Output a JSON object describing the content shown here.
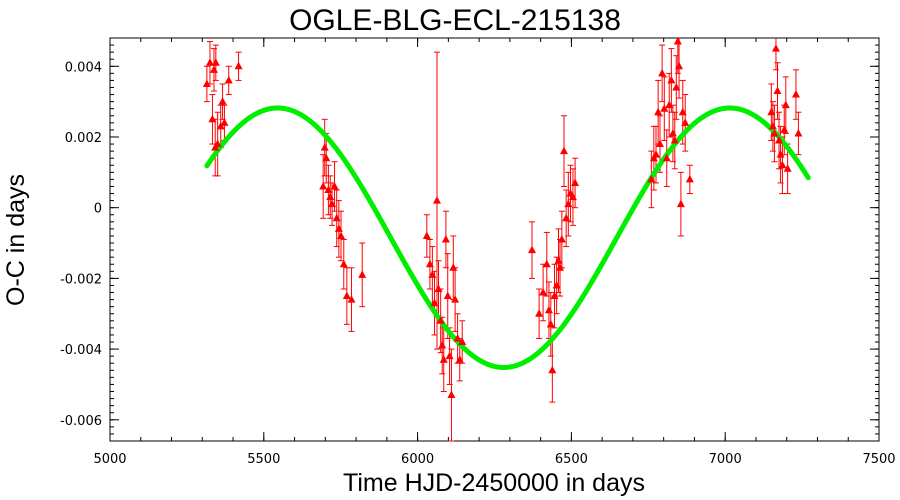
{
  "chart_data": {
    "type": "scatter",
    "title": "OGLE-BLG-ECL-215138",
    "xlabel": "Time HJD-2450000 in days",
    "ylabel": "O-C in days",
    "xlim": [
      5000,
      7500
    ],
    "ylim": [
      -0.0066,
      0.0048
    ],
    "x_ticks": [
      5000,
      5500,
      6000,
      6500,
      7000,
      7500
    ],
    "x_tick_labels": [
      "5000",
      "5500",
      "6000",
      "6500",
      "7000",
      "7500"
    ],
    "y_ticks": [
      0.004,
      0.002,
      0,
      -0.002,
      -0.004,
      -0.006
    ],
    "y_tick_labels": [
      "0.004",
      "0.002",
      "0",
      "-0.002",
      "-0.004",
      "-0.006"
    ],
    "colors": {
      "points": "#ff0000",
      "fit": "#00ee00",
      "frame": "#000000"
    },
    "series": [
      {
        "kind": "data-with-errorbars",
        "x": [
          5315,
          5325,
          5333,
          5342,
          5350,
          5338,
          5344,
          5360,
          5366,
          5372,
          5386,
          5418,
          5693,
          5698,
          5703,
          5710,
          5716,
          5722,
          5730,
          5737,
          5744,
          5751,
          5760,
          5770,
          5785,
          5820,
          6030,
          6040,
          6048,
          6055,
          6063,
          6068,
          6075,
          6080,
          6085,
          6092,
          6098,
          6104,
          6110,
          6116,
          6122,
          6130,
          6137,
          6145,
          6372,
          6395,
          6408,
          6420,
          6427,
          6433,
          6438,
          6445,
          6452,
          6458,
          6463,
          6469,
          6476,
          6483,
          6490,
          6497,
          6505,
          6512,
          6760,
          6768,
          6775,
          6782,
          6788,
          6795,
          6802,
          6810,
          6818,
          6825,
          6830,
          6836,
          6841,
          6846,
          6850,
          6856,
          6862,
          6870,
          6885,
          7150,
          7155,
          7160,
          7165,
          7170,
          7175,
          7180,
          7186,
          7192,
          7197,
          7203,
          7230,
          7238
        ],
        "y": [
          0.0035,
          0.0041,
          0.0025,
          0.0017,
          0.0018,
          0.0039,
          0.0041,
          0.0023,
          0.003,
          0.0024,
          0.0036,
          0.004,
          0.0006,
          0.0017,
          0.0014,
          0.0005,
          0.0003,
          0.0001,
          0.0006,
          -0.0003,
          -0.0006,
          -0.0008,
          -0.0016,
          -0.0025,
          -0.0026,
          -0.0019,
          -0.0008,
          -0.0016,
          -0.0019,
          -0.0027,
          0.0002,
          -0.0023,
          -0.0032,
          -0.0039,
          -0.0043,
          -0.0009,
          -0.0025,
          -0.0042,
          -0.0053,
          -0.0017,
          -0.0026,
          -0.0037,
          -0.0043,
          -0.0038,
          -0.0012,
          -0.003,
          -0.0024,
          -0.0016,
          -0.0029,
          -0.0033,
          -0.0046,
          -0.0025,
          -0.0022,
          -0.0015,
          -0.0017,
          -0.0009,
          0.0016,
          -0.0003,
          0.0001,
          0.0004,
          0.0003,
          0.0007,
          0.0008,
          0.0014,
          0.0015,
          0.0027,
          0.0018,
          0.0038,
          0.0028,
          0.0014,
          0.0029,
          0.0036,
          0.0021,
          0.0019,
          0.0034,
          0.0047,
          0.004,
          0.0001,
          0.0027,
          0.0024,
          0.0008,
          0.0027,
          0.0023,
          0.0021,
          0.0045,
          0.0033,
          0.0019,
          0.0015,
          0.0012,
          0.0022,
          0.0029,
          0.0011,
          0.0032,
          0.0021
        ],
        "yerr": [
          0.0005,
          0.0006,
          0.0007,
          0.0008,
          0.0009,
          0.0006,
          0.0005,
          0.0006,
          0.0005,
          0.0005,
          0.0004,
          0.0004,
          0.0009,
          0.0008,
          0.0007,
          0.0007,
          0.0006,
          0.0006,
          0.0007,
          0.0008,
          0.0008,
          0.0007,
          0.0007,
          0.0008,
          0.0009,
          0.0009,
          0.0006,
          0.0007,
          0.0008,
          0.0009,
          0.0042,
          0.0008,
          0.0009,
          0.0008,
          0.0009,
          0.0008,
          0.0012,
          0.0008,
          0.0013,
          0.0009,
          0.0009,
          0.0007,
          0.0006,
          0.0006,
          0.0008,
          0.0007,
          0.0008,
          0.0009,
          0.0008,
          0.0009,
          0.0009,
          0.0009,
          0.0008,
          0.0009,
          0.0008,
          0.0008,
          0.001,
          0.0008,
          0.0009,
          0.0008,
          0.0008,
          0.0007,
          0.0008,
          0.0009,
          0.0008,
          0.0009,
          0.0008,
          0.0008,
          0.0009,
          0.0008,
          0.0009,
          0.0009,
          0.0008,
          0.0008,
          0.0009,
          0.0009,
          0.0009,
          0.0009,
          0.0009,
          0.0008,
          0.0004,
          0.0008,
          0.0007,
          0.0008,
          0.0006,
          0.0008,
          0.0008,
          0.0008,
          0.0008,
          0.0007,
          0.0008,
          0.0007,
          0.0007,
          0.0006
        ]
      },
      {
        "kind": "fit-curve",
        "model": "sinusoid",
        "offset": -0.00085,
        "amplitude": 0.00367,
        "period_days": 1470,
        "minimum_at": 6280,
        "x_range": [
          5315,
          7270
        ]
      }
    ]
  }
}
